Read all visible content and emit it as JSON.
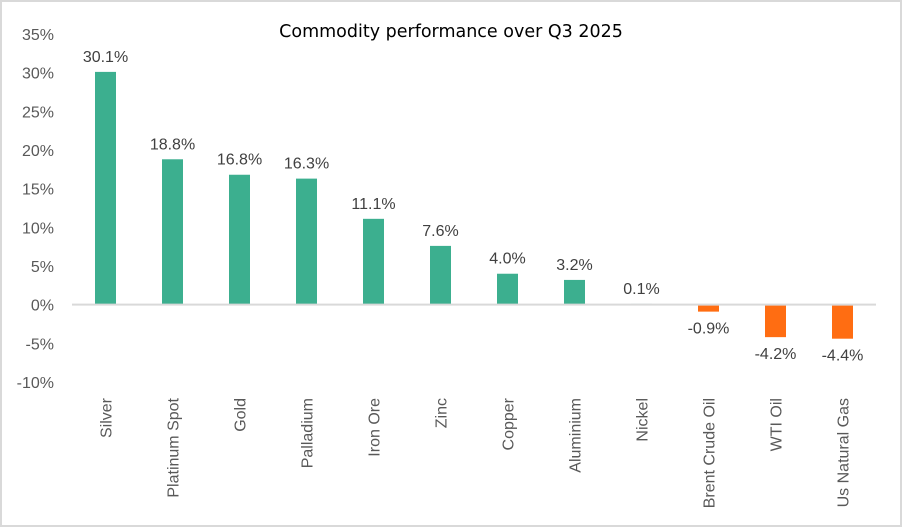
{
  "chart_data": {
    "type": "bar",
    "title": "Commodity performance over Q3 2025",
    "xlabel": "",
    "ylabel": "",
    "categories": [
      "Silver",
      "Platinum Spot",
      "Gold",
      "Palladium",
      "Iron Ore",
      "Zinc",
      "Copper",
      "Aluminium",
      "Nickel",
      "Brent Crude Oil",
      "WTI Oil",
      "Us Natural Gas"
    ],
    "values": [
      30.1,
      18.8,
      16.8,
      16.3,
      11.1,
      7.6,
      4.0,
      3.2,
      0.1,
      -0.9,
      -4.2,
      -4.4
    ],
    "data_labels": [
      "30.1%",
      "18.8%",
      "16.8%",
      "16.3%",
      "11.1%",
      "7.6%",
      "4.0%",
      "3.2%",
      "0.1%",
      "-0.9%",
      "-4.2%",
      "-4.4%"
    ],
    "unit": "%",
    "ylim": [
      -10,
      35
    ],
    "yticks": [
      35,
      30,
      25,
      20,
      15,
      10,
      5,
      0,
      -5,
      -10
    ],
    "ytick_labels": [
      "35%",
      "30%",
      "25%",
      "20%",
      "15%",
      "10%",
      "5%",
      "0%",
      "-5%",
      "-10%"
    ],
    "grid": false,
    "legend": "none",
    "colors": {
      "positive": "#3caf8f",
      "negative": "#ff6d12",
      "axis": "#d9d9d9"
    }
  }
}
